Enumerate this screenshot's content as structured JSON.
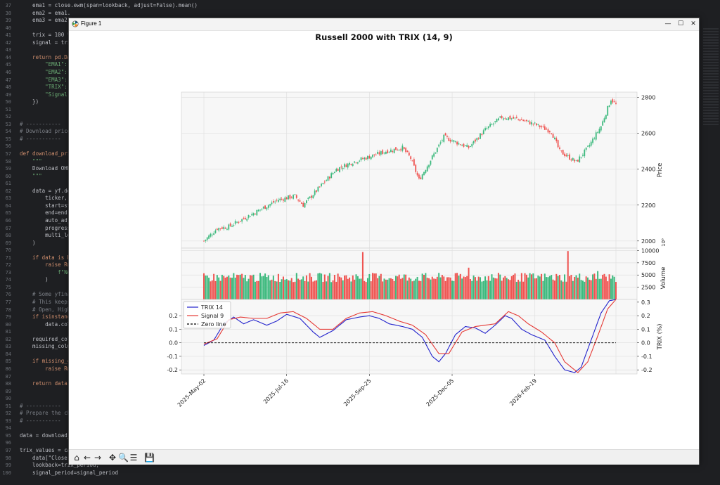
{
  "editor": {
    "lines": [
      {
        "n": "37",
        "t": "    ema1 = close.ewm(span=lookback, adjust=False).mean()"
      },
      {
        "n": "38",
        "t": "    ema2 = ema1."
      },
      {
        "n": "39",
        "t": "    ema3 = ema2."
      },
      {
        "n": "40",
        "t": ""
      },
      {
        "n": "41",
        "t": "    trix = 100 *"
      },
      {
        "n": "42",
        "t": "    signal = tri"
      },
      {
        "n": "43",
        "t": ""
      },
      {
        "n": "44",
        "t": "    return pd.Da"
      },
      {
        "n": "45",
        "t": "        \"EMA1\":"
      },
      {
        "n": "46",
        "t": "        \"EMA2\":"
      },
      {
        "n": "47",
        "t": "        \"EMA3\":"
      },
      {
        "n": "48",
        "t": "        \"TRIX\":"
      },
      {
        "n": "49",
        "t": "        \"Signal\""
      },
      {
        "n": "50",
        "t": "    })"
      },
      {
        "n": "51",
        "t": ""
      },
      {
        "n": "52",
        "t": ""
      },
      {
        "n": "53",
        "t": "# -----------"
      },
      {
        "n": "54",
        "t": "# Download price"
      },
      {
        "n": "55",
        "t": "# -----------"
      },
      {
        "n": "56",
        "t": ""
      },
      {
        "n": "57",
        "t": "def download_pri"
      },
      {
        "n": "58",
        "t": "    \"\"\""
      },
      {
        "n": "59",
        "t": "    Download OHL"
      },
      {
        "n": "60",
        "t": "    \"\"\""
      },
      {
        "n": "61",
        "t": ""
      },
      {
        "n": "62",
        "t": "    data = yf.do"
      },
      {
        "n": "63",
        "t": "        ticker,"
      },
      {
        "n": "64",
        "t": "        start=st"
      },
      {
        "n": "65",
        "t": "        end=end,"
      },
      {
        "n": "66",
        "t": "        auto_adj"
      },
      {
        "n": "67",
        "t": "        progress"
      },
      {
        "n": "68",
        "t": "        multi_le"
      },
      {
        "n": "69",
        "t": "    )"
      },
      {
        "n": "70",
        "t": ""
      },
      {
        "n": "71",
        "t": "    if data is N"
      },
      {
        "n": "72",
        "t": "        raise Ru"
      },
      {
        "n": "73",
        "t": "            f\"No"
      },
      {
        "n": "74",
        "t": "        )"
      },
      {
        "n": "75",
        "t": ""
      },
      {
        "n": "76",
        "t": "    # Some yfina"
      },
      {
        "n": "77",
        "t": "    # This keeps"
      },
      {
        "n": "78",
        "t": "    # Open, High"
      },
      {
        "n": "79",
        "t": "    if isinstanc"
      },
      {
        "n": "80",
        "t": "        data.col"
      },
      {
        "n": "81",
        "t": ""
      },
      {
        "n": "82",
        "t": "    required_col"
      },
      {
        "n": "83",
        "t": "    missing_colu"
      },
      {
        "n": "84",
        "t": ""
      },
      {
        "n": "85",
        "t": "    if missing_c"
      },
      {
        "n": "86",
        "t": "        raise Ru"
      },
      {
        "n": "87",
        "t": ""
      },
      {
        "n": "88",
        "t": "    return data"
      },
      {
        "n": "89",
        "t": ""
      },
      {
        "n": "90",
        "t": ""
      },
      {
        "n": "91",
        "t": "# -----------"
      },
      {
        "n": "92",
        "t": "# Prepare the ch"
      },
      {
        "n": "93",
        "t": "# -----------"
      },
      {
        "n": "94",
        "t": ""
      },
      {
        "n": "95",
        "t": "data = download_"
      },
      {
        "n": "96",
        "t": ""
      },
      {
        "n": "97",
        "t": "trix_values = ca"
      },
      {
        "n": "98",
        "t": "    data[\"Close\"],"
      },
      {
        "n": "99",
        "t": "    lookback=trix_period,"
      },
      {
        "n": "100",
        "t": "    signal_period=signal_period"
      }
    ]
  },
  "window": {
    "title": "Figure 1",
    "minimize_glyph": "—",
    "maximize_glyph": "☐",
    "close_glyph": "✕",
    "icon": "matplotlib-icon"
  },
  "toolbar": {
    "buttons": [
      {
        "name": "home-icon",
        "glyph": "⌂"
      },
      {
        "name": "back-arrow-icon",
        "glyph": "←"
      },
      {
        "name": "forward-arrow-icon",
        "glyph": "→"
      },
      {
        "name": "pan-icon",
        "glyph": "✥"
      },
      {
        "name": "zoom-icon",
        "glyph": "🔍"
      },
      {
        "name": "configure-subplots-icon",
        "glyph": "☰"
      },
      {
        "name": "save-icon",
        "glyph": "💾"
      }
    ]
  },
  "colors": {
    "up": "#3cb97d",
    "down": "#ef5350",
    "trix": "#2222cc",
    "signal": "#e53935",
    "zero": "#000000",
    "grid": "#e0e0e0",
    "panel_bg": "#f7f7f7"
  },
  "chart_data": {
    "title": "Russell 2000 with TRIX (14, 9)",
    "x_tick_labels": [
      "2025-May-02",
      "2025-Jul-16",
      "2025-Sep-25",
      "2025-Dec-05",
      "2026-Feb-19"
    ],
    "x_tick_positions": [
      0,
      50,
      100,
      150,
      200
    ],
    "n_bars": 250,
    "panels": [
      {
        "type": "candlestick",
        "ylabel": "Price",
        "ylim": [
          1960,
          2830
        ],
        "yticks": [
          2000,
          2200,
          2400,
          2600,
          2800
        ],
        "close_anchors": [
          [
            0,
            2000
          ],
          [
            8,
            2070
          ],
          [
            15,
            2080
          ],
          [
            25,
            2130
          ],
          [
            35,
            2180
          ],
          [
            45,
            2230
          ],
          [
            55,
            2250
          ],
          [
            60,
            2200
          ],
          [
            70,
            2300
          ],
          [
            80,
            2400
          ],
          [
            90,
            2440
          ],
          [
            100,
            2470
          ],
          [
            110,
            2500
          ],
          [
            120,
            2520
          ],
          [
            125,
            2460
          ],
          [
            130,
            2340
          ],
          [
            135,
            2420
          ],
          [
            145,
            2580
          ],
          [
            160,
            2520
          ],
          [
            170,
            2620
          ],
          [
            180,
            2690
          ],
          [
            190,
            2680
          ],
          [
            200,
            2650
          ],
          [
            210,
            2610
          ],
          [
            215,
            2500
          ],
          [
            225,
            2440
          ],
          [
            232,
            2520
          ],
          [
            240,
            2640
          ],
          [
            246,
            2790
          ],
          [
            249,
            2760
          ]
        ]
      },
      {
        "type": "volume_bars",
        "ylabel": "Volume",
        "ylabel_exponent": "10⁶",
        "ylim": [
          0,
          10500
        ],
        "yticks": [
          2500,
          5000,
          7500,
          10000
        ],
        "base": 4500,
        "spikes": [
          [
            96,
            9700
          ],
          [
            160,
            6500
          ],
          [
            220,
            9900
          ],
          [
            238,
            5800
          ]
        ]
      },
      {
        "type": "line",
        "ylabel": "TRIX (%)",
        "ylim": [
          -0.23,
          0.32
        ],
        "yticks": [
          -0.2,
          -0.1,
          0.0,
          0.1,
          0.2
        ],
        "right_yticks": [
          -0.2,
          -0.1,
          0.0,
          0.1,
          0.2,
          0.3
        ],
        "series": [
          {
            "name": "TRIX 14",
            "anchors": [
              [
                0,
                -0.02
              ],
              [
                6,
                0.02
              ],
              [
                12,
                0.14
              ],
              [
                18,
                0.19
              ],
              [
                24,
                0.14
              ],
              [
                30,
                0.17
              ],
              [
                38,
                0.13
              ],
              [
                44,
                0.16
              ],
              [
                50,
                0.21
              ],
              [
                58,
                0.18
              ],
              [
                66,
                0.08
              ],
              [
                70,
                0.04
              ],
              [
                78,
                0.09
              ],
              [
                86,
                0.17
              ],
              [
                94,
                0.19
              ],
              [
                100,
                0.2
              ],
              [
                106,
                0.18
              ],
              [
                112,
                0.14
              ],
              [
                120,
                0.12
              ],
              [
                126,
                0.1
              ],
              [
                132,
                0.04
              ],
              [
                138,
                -0.1
              ],
              [
                142,
                -0.14
              ],
              [
                146,
                -0.08
              ],
              [
                152,
                0.06
              ],
              [
                158,
                0.12
              ],
              [
                164,
                0.11
              ],
              [
                170,
                0.07
              ],
              [
                176,
                0.13
              ],
              [
                182,
                0.2
              ],
              [
                186,
                0.18
              ],
              [
                192,
                0.1
              ],
              [
                198,
                0.06
              ],
              [
                206,
                0.02
              ],
              [
                212,
                -0.1
              ],
              [
                218,
                -0.2
              ],
              [
                224,
                -0.22
              ],
              [
                228,
                -0.18
              ],
              [
                234,
                0.02
              ],
              [
                240,
                0.22
              ],
              [
                245,
                0.31
              ],
              [
                249,
                0.32
              ]
            ]
          },
          {
            "name": "Signal 9",
            "anchors": [
              [
                0,
                -0.01
              ],
              [
                8,
                0.03
              ],
              [
                15,
                0.17
              ],
              [
                22,
                0.19
              ],
              [
                30,
                0.18
              ],
              [
                38,
                0.18
              ],
              [
                46,
                0.22
              ],
              [
                54,
                0.23
              ],
              [
                62,
                0.18
              ],
              [
                70,
                0.1
              ],
              [
                78,
                0.1
              ],
              [
                86,
                0.18
              ],
              [
                94,
                0.22
              ],
              [
                102,
                0.23
              ],
              [
                110,
                0.2
              ],
              [
                118,
                0.16
              ],
              [
                126,
                0.13
              ],
              [
                134,
                0.06
              ],
              [
                142,
                -0.08
              ],
              [
                148,
                -0.08
              ],
              [
                156,
                0.08
              ],
              [
                164,
                0.12
              ],
              [
                170,
                0.13
              ],
              [
                176,
                0.14
              ],
              [
                184,
                0.23
              ],
              [
                190,
                0.2
              ],
              [
                196,
                0.14
              ],
              [
                204,
                0.08
              ],
              [
                212,
                0.0
              ],
              [
                218,
                -0.14
              ],
              [
                226,
                -0.22
              ],
              [
                232,
                -0.14
              ],
              [
                238,
                0.05
              ],
              [
                244,
                0.25
              ],
              [
                249,
                0.32
              ]
            ]
          },
          {
            "name": "Zero line",
            "anchors": [
              [
                0,
                0.0
              ],
              [
                249,
                0.0
              ]
            ]
          }
        ],
        "legend_placement": "upper-left"
      }
    ],
    "grid": true
  }
}
